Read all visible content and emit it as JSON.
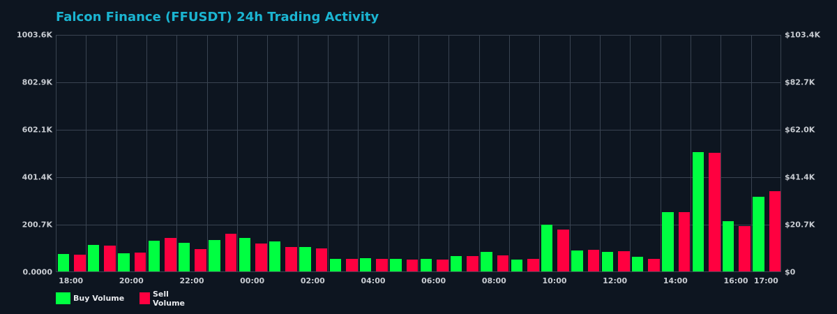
{
  "chart_data": {
    "type": "bar",
    "title": "Falcon Finance (FFUSDT) 24h Trading Activity",
    "xlabel": "",
    "ylabel": "",
    "ylim": [
      0,
      1003.6
    ],
    "y_unit": "K",
    "y_ticks_left": [
      "0.0000",
      "200.7K",
      "401.4K",
      "602.1K",
      "802.9K",
      "1003.6K"
    ],
    "y_ticks_right": [
      "$0",
      "$20.7K",
      "$41.4K",
      "$62.0K",
      "$82.7K",
      "$103.4K"
    ],
    "x_tick_labels": [
      {
        "label": "18:00",
        "index": 0
      },
      {
        "label": "20:00",
        "index": 2
      },
      {
        "label": "22:00",
        "index": 4
      },
      {
        "label": "00:00",
        "index": 6
      },
      {
        "label": "02:00",
        "index": 8
      },
      {
        "label": "04:00",
        "index": 10
      },
      {
        "label": "06:00",
        "index": 12
      },
      {
        "label": "08:00",
        "index": 14
      },
      {
        "label": "10:00",
        "index": 16
      },
      {
        "label": "12:00",
        "index": 18
      },
      {
        "label": "14:00",
        "index": 20
      },
      {
        "label": "16:00",
        "index": 22
      },
      {
        "label": "17:00",
        "index": 23
      }
    ],
    "categories": [
      "18:00",
      "19:00",
      "20:00",
      "21:00",
      "22:00",
      "23:00",
      "00:00",
      "01:00",
      "02:00",
      "03:00",
      "04:00",
      "05:00",
      "06:00",
      "07:00",
      "08:00",
      "09:00",
      "10:00",
      "11:00",
      "12:00",
      "13:00",
      "14:00",
      "15:00",
      "16:00",
      "17:00"
    ],
    "series": [
      {
        "name": "Buy Volume",
        "color": "#00ff41",
        "values": [
          73.8,
          112.2,
          76.7,
          129.9,
          121.0,
          132.8,
          141.7,
          126.9,
          103.3,
          53.1,
          56.1,
          53.1,
          53.1,
          64.9,
          82.7,
          50.2,
          197.8,
          88.6,
          82.7,
          62.0,
          250.9,
          504.8,
          212.5,
          315.8
        ]
      },
      {
        "name": "Sell Volume",
        "color": "#ff0040",
        "values": [
          70.8,
          109.2,
          79.7,
          141.7,
          94.5,
          159.4,
          118.1,
          103.3,
          97.4,
          53.1,
          53.1,
          50.2,
          50.2,
          64.9,
          67.9,
          53.1,
          177.1,
          91.5,
          85.6,
          53.1,
          250.9,
          501.8,
          191.9,
          339.5
        ]
      }
    ],
    "grid": true,
    "legend_position": "bottom-left"
  },
  "legend": {
    "buy_label": "Buy Volume",
    "sell_label": "Sell Volume"
  },
  "colors": {
    "background": "#0d1520",
    "title": "#1bb5d2",
    "grid": "#3a4452",
    "buy": "#00ff41",
    "sell": "#ff0040"
  }
}
